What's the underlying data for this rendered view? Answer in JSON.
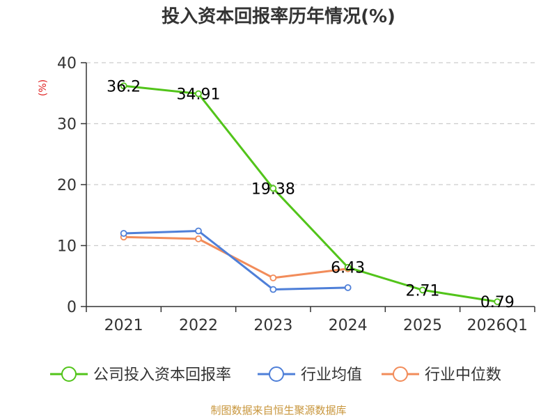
{
  "chart_data": {
    "type": "line",
    "title": "投入资本回报率历年情况(%)",
    "ylabel": "(%)",
    "xlabel": "",
    "categories": [
      "2021",
      "2022",
      "2023",
      "2024",
      "2025",
      "2026Q1"
    ],
    "ylim": [
      0,
      40
    ],
    "yticks": [
      0,
      10,
      20,
      30,
      40
    ],
    "grid": true,
    "legend_position": "bottom",
    "series": [
      {
        "name": "公司投入资本回报率",
        "color": "#52c41a",
        "values": [
          36.2,
          34.91,
          19.38,
          6.43,
          2.71,
          0.79
        ],
        "labels": [
          "36.2",
          "34.91",
          "19.38",
          "6.43",
          "2.71",
          "0.79"
        ]
      },
      {
        "name": "行业均值",
        "color": "#4e7fd8",
        "values": [
          12.0,
          12.4,
          2.8,
          3.1,
          null,
          null
        ]
      },
      {
        "name": "行业中位数",
        "color": "#f28c5a",
        "values": [
          11.4,
          11.1,
          4.7,
          6.2,
          null,
          null
        ]
      }
    ]
  },
  "footer": {
    "source": "制图数据来自恒生聚源数据库",
    "source_color": "#c8963c"
  },
  "colors": {
    "unit": "#e02020",
    "axis": "#333333",
    "grid": "#cccccc"
  }
}
